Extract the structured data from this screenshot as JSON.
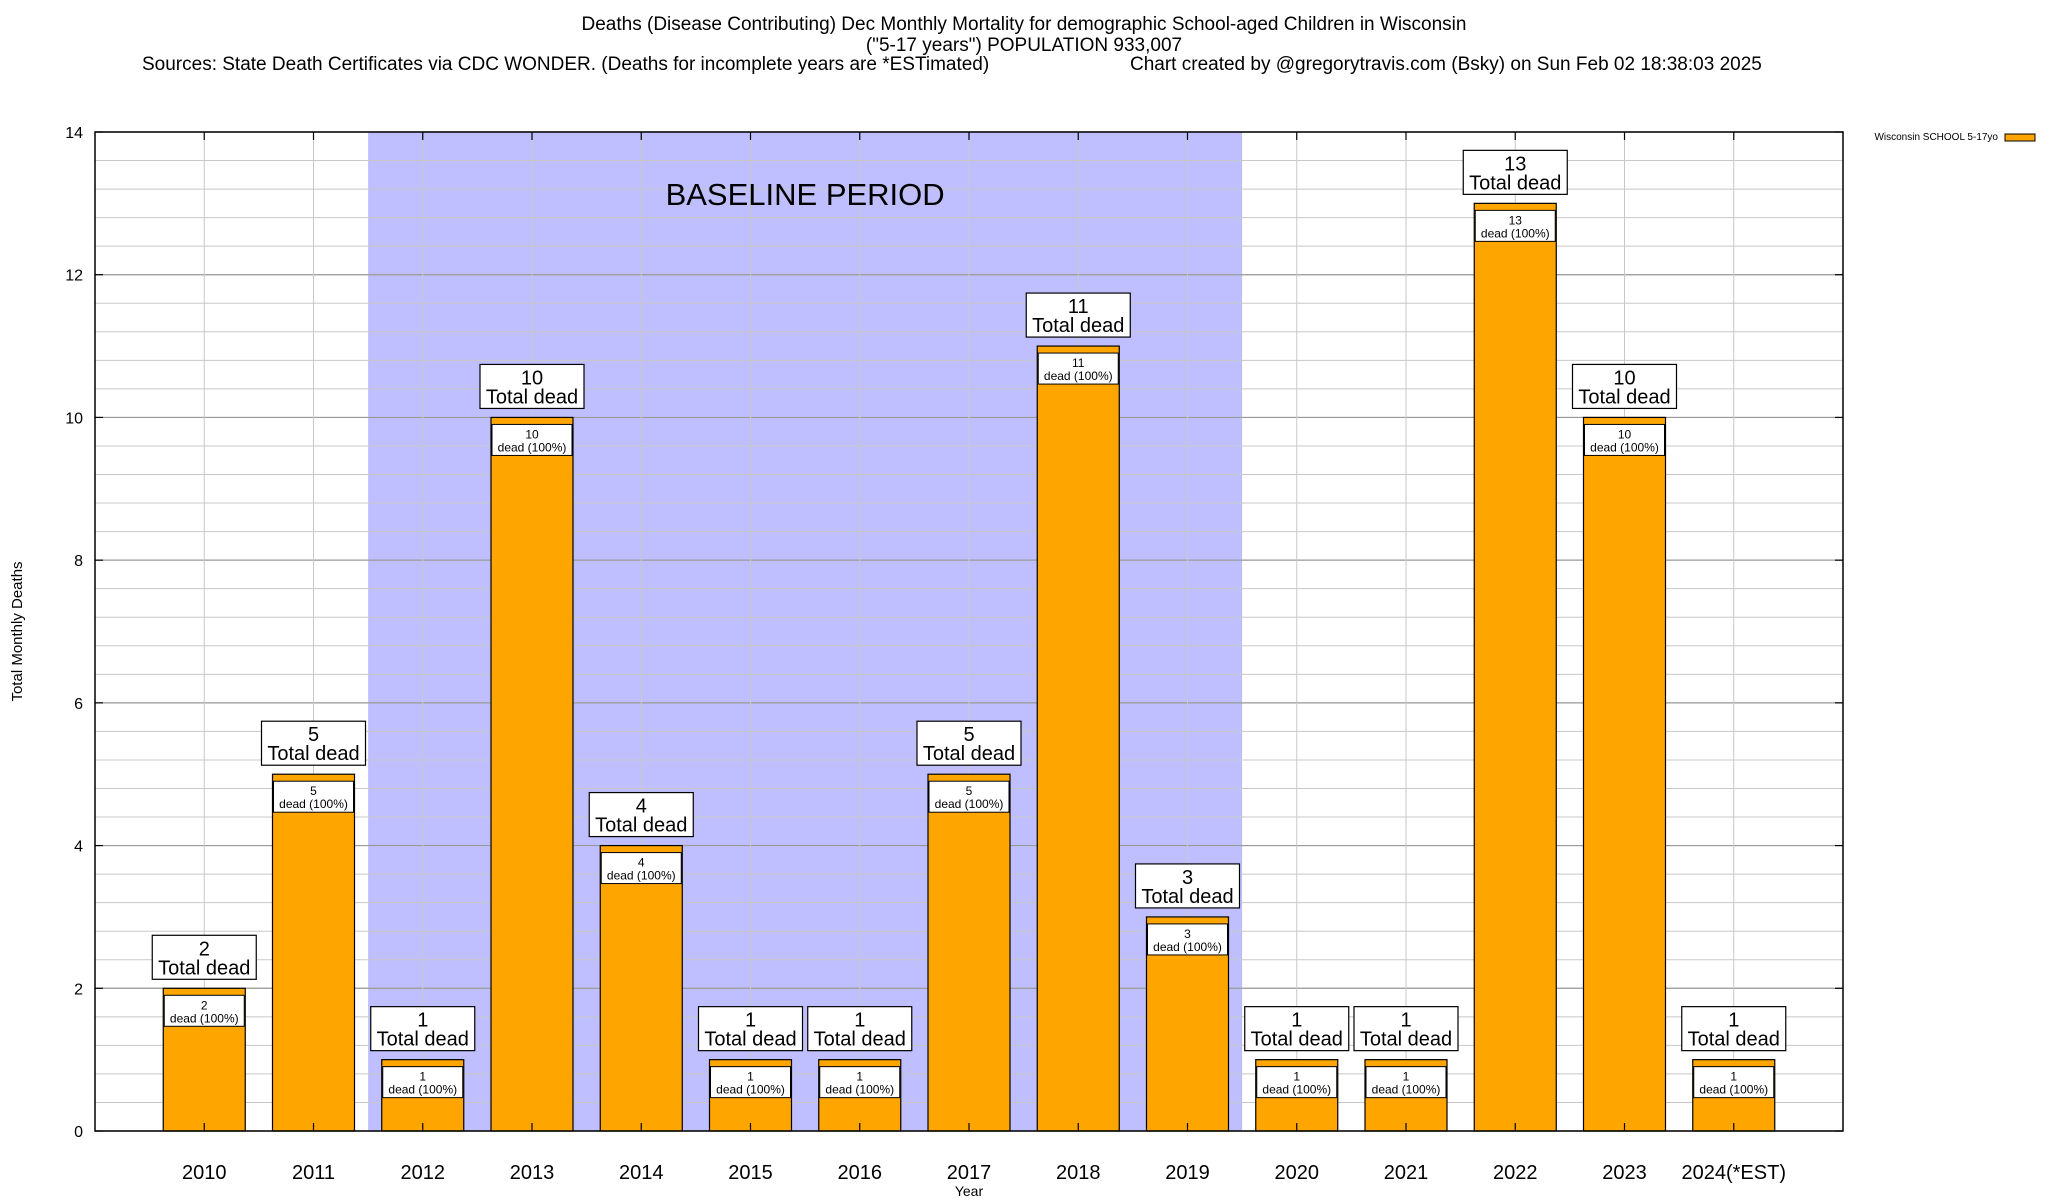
{
  "chart_data": {
    "type": "bar",
    "title_line1": "Deaths (Disease Contributing) Dec Monthly Mortality for demographic School-aged Children in Wisconsin",
    "title_line2": "(\"5-17 years\") POPULATION 933,007",
    "sources": "Sources: State Death Certificates via CDC WONDER. (Deaths for incomplete years are *ESTimated)",
    "credit": "Chart created by @gregorytravis.com (Bsky) on Sun Feb 02 18:38:03 2025",
    "xlabel": "Year",
    "ylabel": "Total Monthly Deaths",
    "ylim": [
      0,
      14
    ],
    "yticks": [
      0,
      2,
      4,
      6,
      8,
      10,
      12,
      14
    ],
    "categories": [
      "2010",
      "2011",
      "2012",
      "2013",
      "2014",
      "2015",
      "2016",
      "2017",
      "2018",
      "2019",
      "2020",
      "2021",
      "2022",
      "2023",
      "2024(*EST)"
    ],
    "series": [
      {
        "name": "Wisconsin SCHOOL 5-17yo",
        "color": "#FFA500",
        "values": [
          2,
          5,
          1,
          10,
          4,
          1,
          1,
          5,
          11,
          3,
          1,
          1,
          13,
          10,
          1
        ]
      }
    ],
    "total_label_suffix": "Total dead",
    "inner_label_suffix": "dead (100%)",
    "baseline": {
      "label": "BASELINE PERIOD",
      "from": "2012",
      "to": "2019",
      "color": "#BFBFFF"
    },
    "legend_position": "top-right",
    "grid": true
  }
}
